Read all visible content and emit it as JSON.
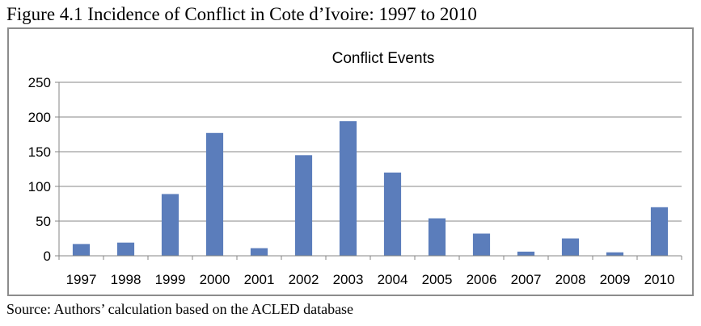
{
  "caption": "Figure 4.1 Incidence of Conflict in Cote d’Ivoire: 1997 to 2010",
  "source": "Source: Authors’ calculation based on the ACLED database",
  "colors": {
    "bar": "#5b7dbb",
    "gridline": "#878787",
    "axis": "#868686",
    "frame": "#8c8c8c"
  },
  "chart_data": {
    "type": "bar",
    "title": "Conflict Events",
    "xlabel": "",
    "ylabel": "",
    "categories": [
      "1997",
      "1998",
      "1999",
      "2000",
      "2001",
      "2002",
      "2003",
      "2004",
      "2005",
      "2006",
      "2007",
      "2008",
      "2009",
      "2010"
    ],
    "values": [
      17,
      19,
      89,
      177,
      11,
      145,
      194,
      120,
      54,
      32,
      6,
      25,
      5,
      70
    ],
    "ylim": [
      0,
      250
    ],
    "yticks": [
      0,
      50,
      100,
      150,
      200,
      250
    ],
    "grid": true,
    "legend": "none"
  }
}
